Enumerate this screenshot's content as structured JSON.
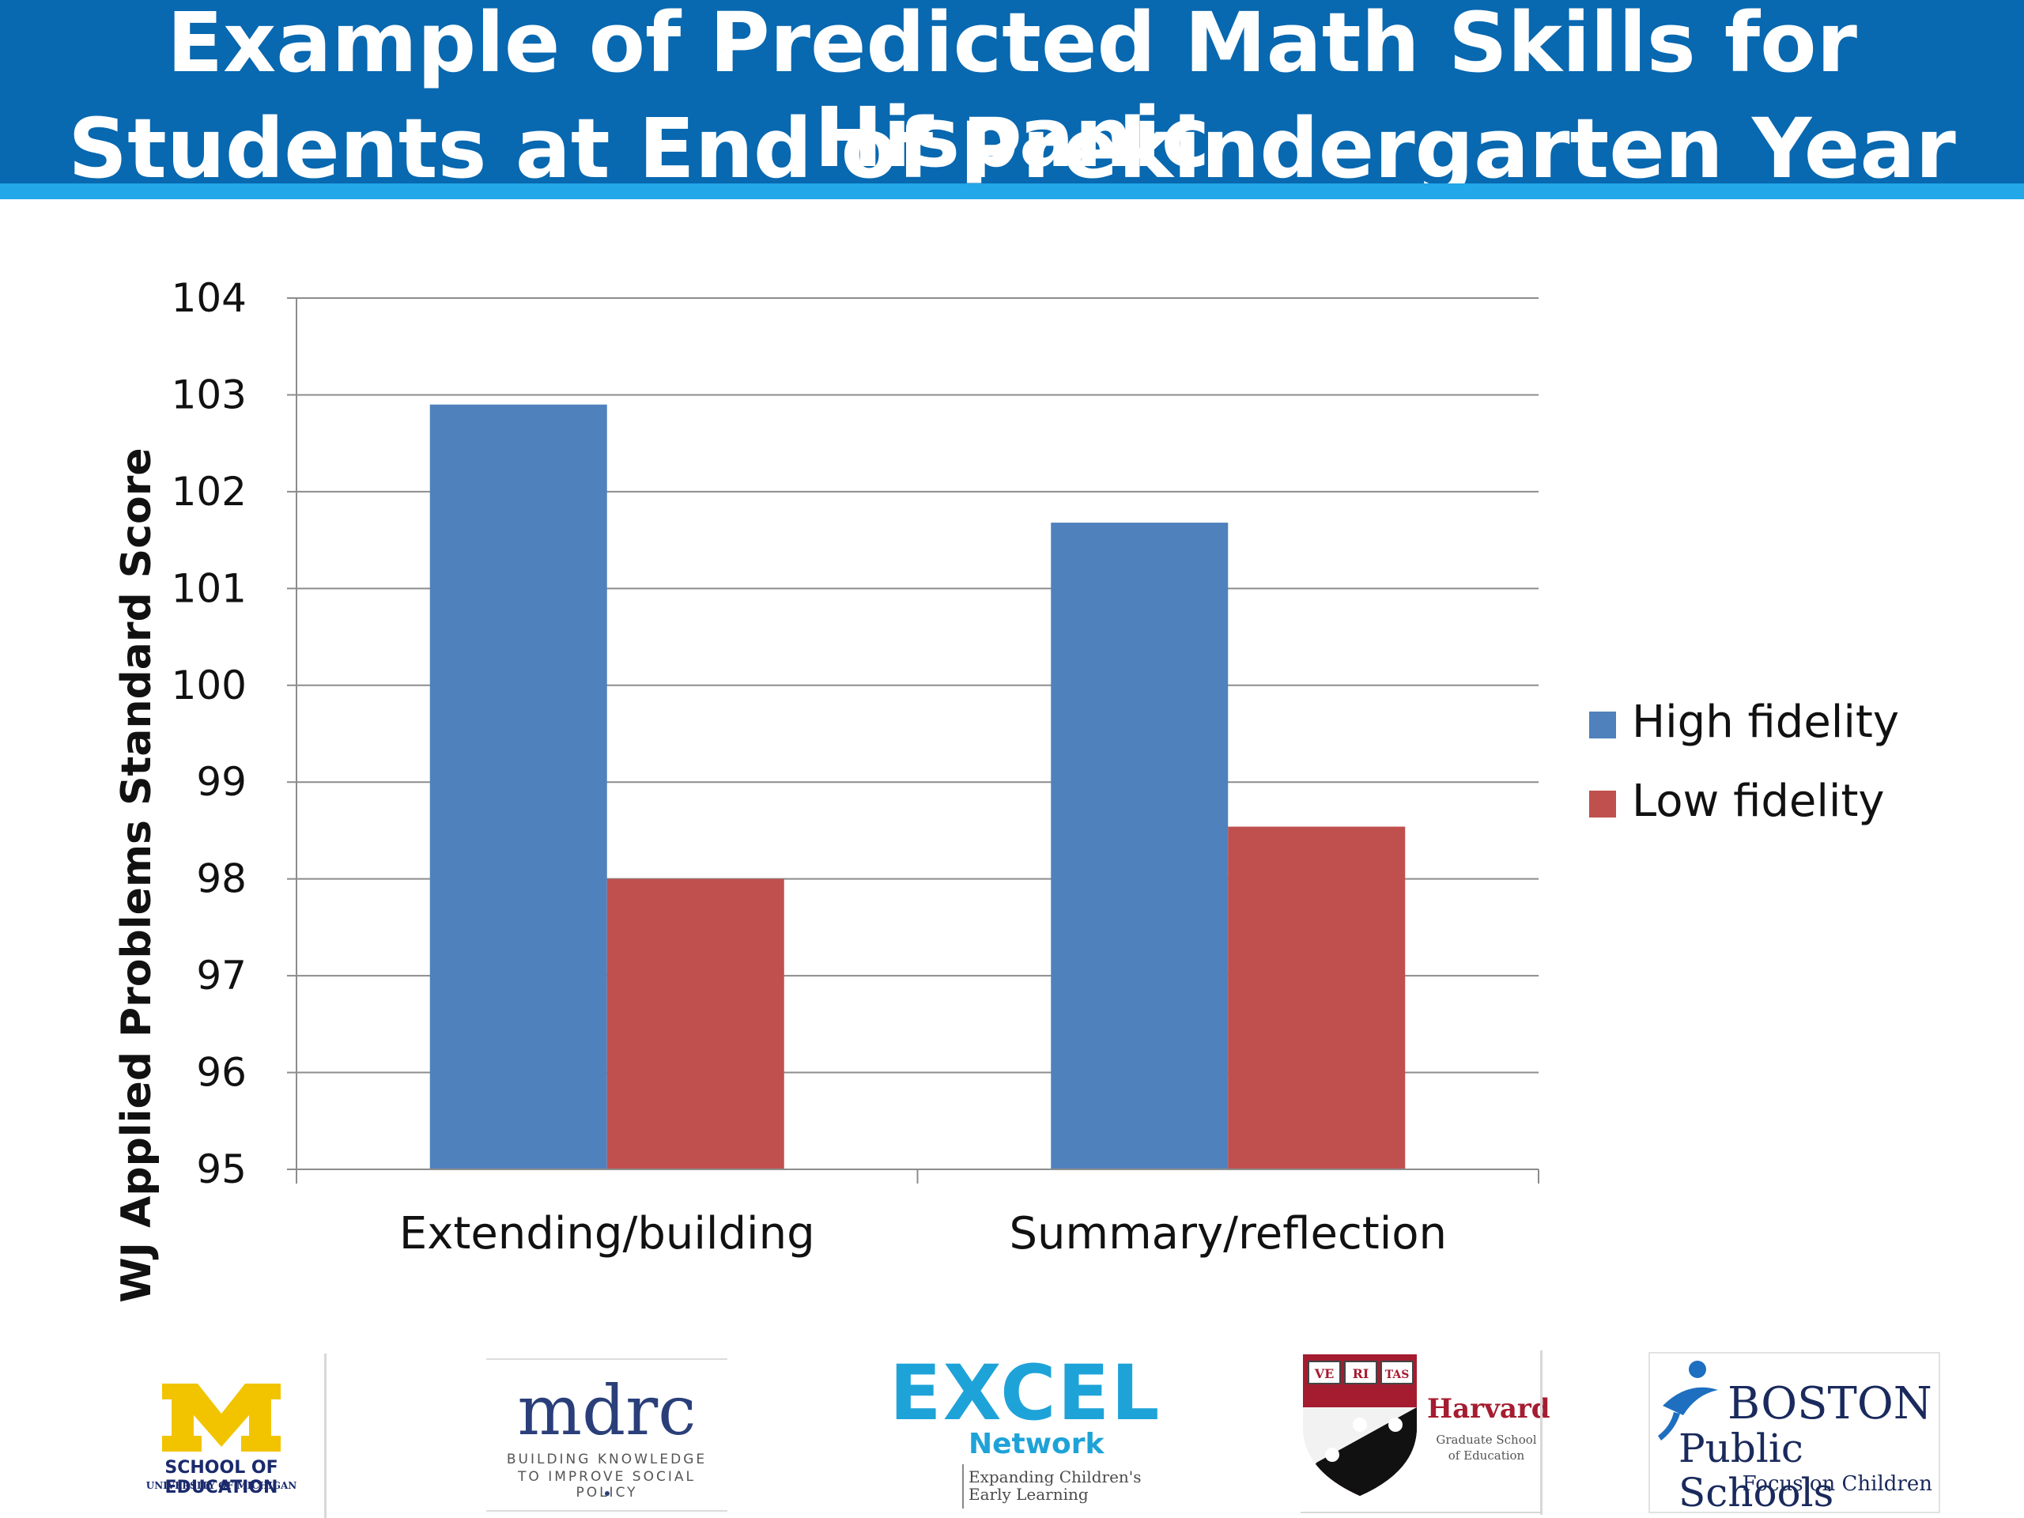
{
  "header": {
    "title_line_1": "Example of Predicted Math Skills for Hispanic",
    "title_line_2": "Students at End of Prekindergarten Year",
    "bg_color": "#0868b0",
    "stripe_color": "#22a7e8"
  },
  "chart_data": {
    "type": "bar",
    "title": "Example of Predicted Math Skills for Hispanic Students at End of Prekindergarten Year",
    "xlabel": "",
    "ylabel": "WJ Applied Problems Standard Score",
    "categories": [
      "Extending/building",
      "Summary/reflection"
    ],
    "series": [
      {
        "name": "High fidelity",
        "color": "#4f81bd",
        "values": [
          102.9,
          101.68
        ]
      },
      {
        "name": "Low fidelity",
        "color": "#c0504d",
        "values": [
          98.0,
          98.54
        ]
      }
    ],
    "ylim": [
      95,
      104
    ],
    "yticks": [
      "95",
      "96",
      "97",
      "98",
      "99",
      "100",
      "101",
      "102",
      "103",
      "104"
    ],
    "grid": true,
    "legend_position": "right"
  },
  "logos": {
    "umich": {
      "line1": "SCHOOL OF EDUCATION",
      "line2": "UNIVERSITY OF MICHIGAN",
      "color": "#f2c400"
    },
    "mdrc": {
      "word": "mdrc",
      "tag1": "BUILDING KNOWLEDGE",
      "tag2": "TO IMPROVE SOCIAL POLICY"
    },
    "excel": {
      "word": "EXCEL",
      "network": "Network",
      "tag1": "Expanding Children's",
      "tag2": "Early Learning"
    },
    "harvard": {
      "name": "Harvard",
      "sub1": "Graduate School",
      "sub2": "of Education",
      "shield_labels": [
        "VE",
        "RI",
        "TAS"
      ]
    },
    "bps": {
      "boston": "BOSTON",
      "public": "Public Schools",
      "focus": "Focus on Children"
    }
  }
}
